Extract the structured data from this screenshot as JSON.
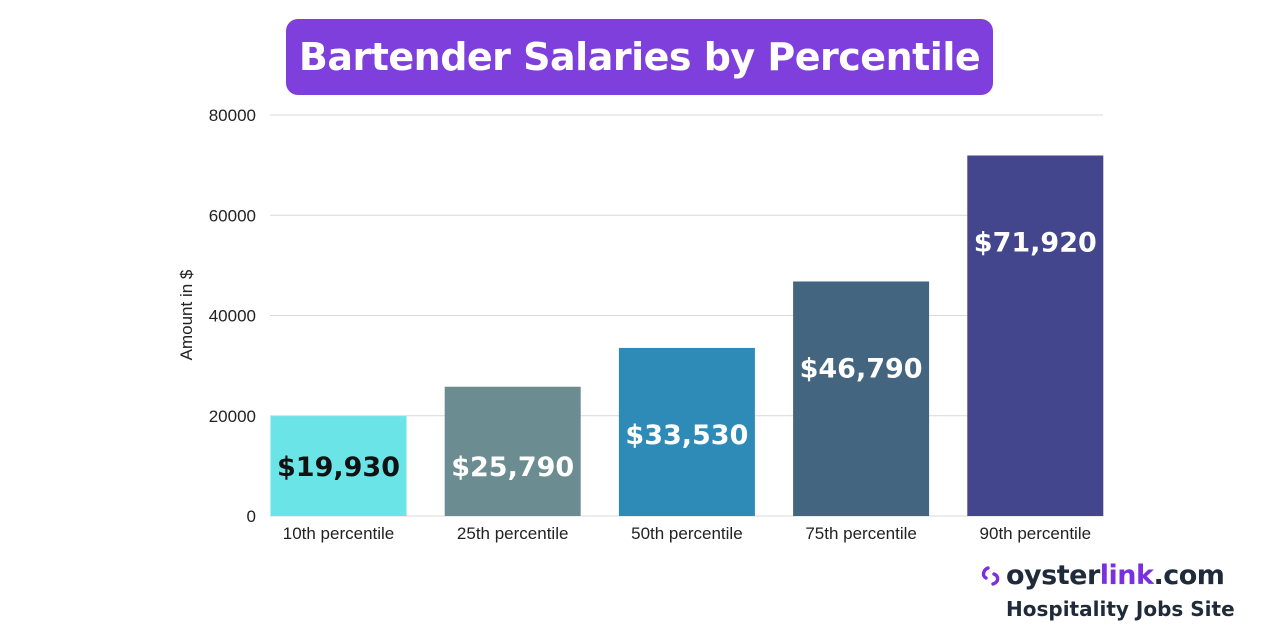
{
  "title": "Bartender Salaries by Percentile",
  "colors": {
    "title_bg": "#7f3fdc",
    "brand_purple": "#7b2fe0",
    "brand_dark": "#1f2a3a",
    "grid": "#d9d9d9",
    "axis_text": "#222222"
  },
  "chart_data": {
    "type": "bar",
    "title": "Bartender Salaries by Percentile",
    "xlabel": "",
    "ylabel": "Amount in $",
    "ylim": [
      0,
      80000
    ],
    "yticks": [
      0,
      20000,
      40000,
      60000,
      80000
    ],
    "ytick_labels": [
      "0",
      "20000",
      "40000",
      "60000",
      "80000"
    ],
    "grid": true,
    "legend": "none",
    "categories": [
      "10th percentile",
      "25th percentile",
      "50th percentile",
      "75th percentile",
      "90th percentile"
    ],
    "values": [
      19930,
      25790,
      33530,
      46790,
      71920
    ],
    "data_labels": [
      "$19,930",
      "$25,790",
      "$33,530",
      "$46,790",
      "$71,920"
    ],
    "bar_colors": [
      "#6be4e8",
      "#6b8c90",
      "#2e8bb8",
      "#44657f",
      "#43458d"
    ],
    "label_colors": [
      "#111111",
      "#ffffff",
      "#ffffff",
      "#ffffff",
      "#ffffff"
    ]
  },
  "logo": {
    "brand_part1": "oyster",
    "brand_part2": "link",
    "brand_part3": ".com",
    "tagline": "Hospitality Jobs Site",
    "icon": "oysterlink-logo-icon"
  }
}
